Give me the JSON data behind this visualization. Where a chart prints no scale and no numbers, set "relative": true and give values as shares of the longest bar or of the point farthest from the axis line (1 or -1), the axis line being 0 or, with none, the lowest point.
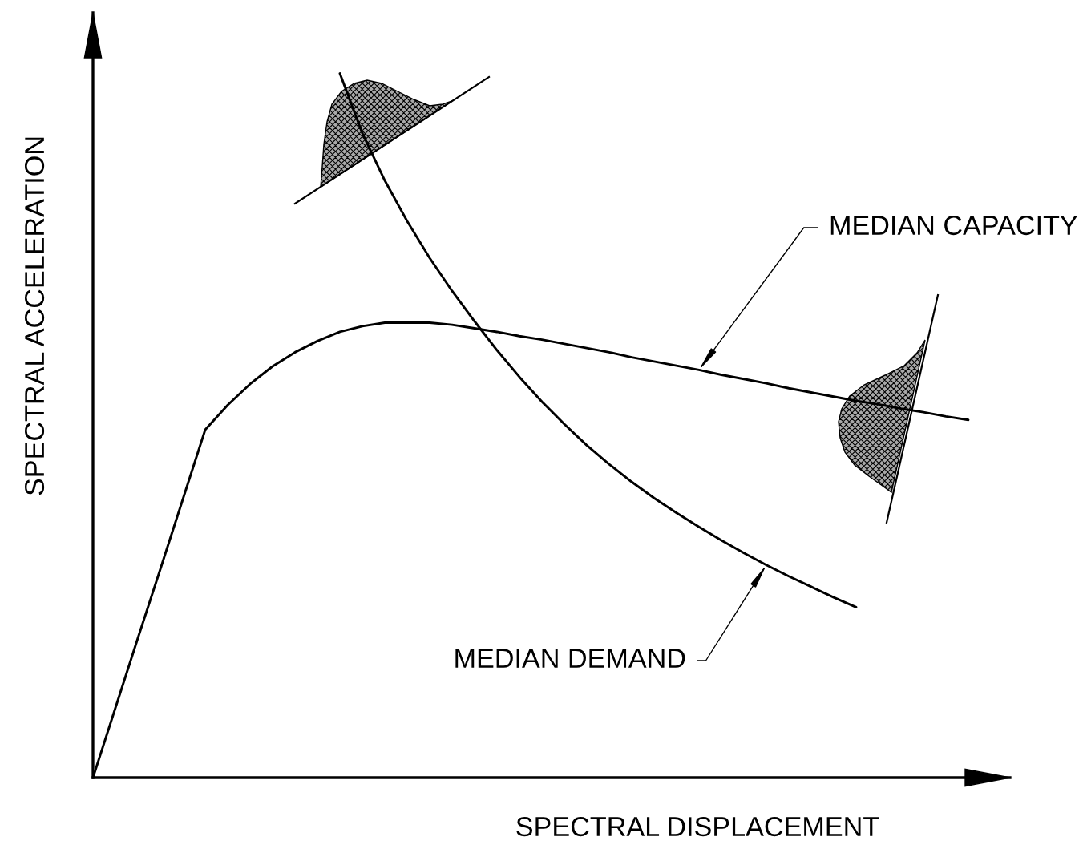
{
  "chart_data": {
    "type": "line",
    "relative": true,
    "xlabel": "SPECTRAL DISPLACEMENT",
    "ylabel": "SPECTRAL ACCELERATION",
    "categories": [
      null,
      null,
      null,
      null,
      null,
      null,
      null,
      null,
      null,
      null,
      null,
      null,
      null,
      null,
      null,
      null,
      null,
      null,
      null,
      null,
      null,
      null,
      null,
      null,
      null,
      null,
      null,
      null,
      null,
      null,
      null,
      null,
      null,
      null,
      null,
      null,
      null,
      null,
      null,
      null
    ],
    "series": [
      {
        "name": "MEDIAN CAPACITY",
        "color": "#000000",
        "values": [
          0,
          0.099,
          0.198,
          0.296,
          0.395,
          0.494,
          0.529,
          0.559,
          0.584,
          0.604,
          0.62,
          0.633,
          0.641,
          0.646,
          0.646,
          0.646,
          0.643,
          0.638,
          0.633,
          0.627,
          0.622,
          0.616,
          0.61,
          0.604,
          0.597,
          0.591,
          0.585,
          0.579,
          0.572,
          0.566,
          0.56,
          0.553,
          0.547,
          0.541,
          0.535,
          0.53,
          0.524,
          0.519,
          0.513,
          0.508
        ]
      },
      {
        "name": "MEDIAN DEMAND",
        "color": "#000000",
        "values": [
          null,
          null,
          null,
          null,
          null,
          null,
          null,
          null,
          null,
          null,
          null,
          1.0,
          0.915,
          0.848,
          0.79,
          0.738,
          0.691,
          0.648,
          0.607,
          0.569,
          0.534,
          0.502,
          0.472,
          0.445,
          0.42,
          0.397,
          0.376,
          0.356,
          0.337,
          0.319,
          0.302,
          0.286,
          0.271,
          0.256,
          0.242,
          null,
          null,
          null,
          null,
          null
        ]
      }
    ]
  }
}
